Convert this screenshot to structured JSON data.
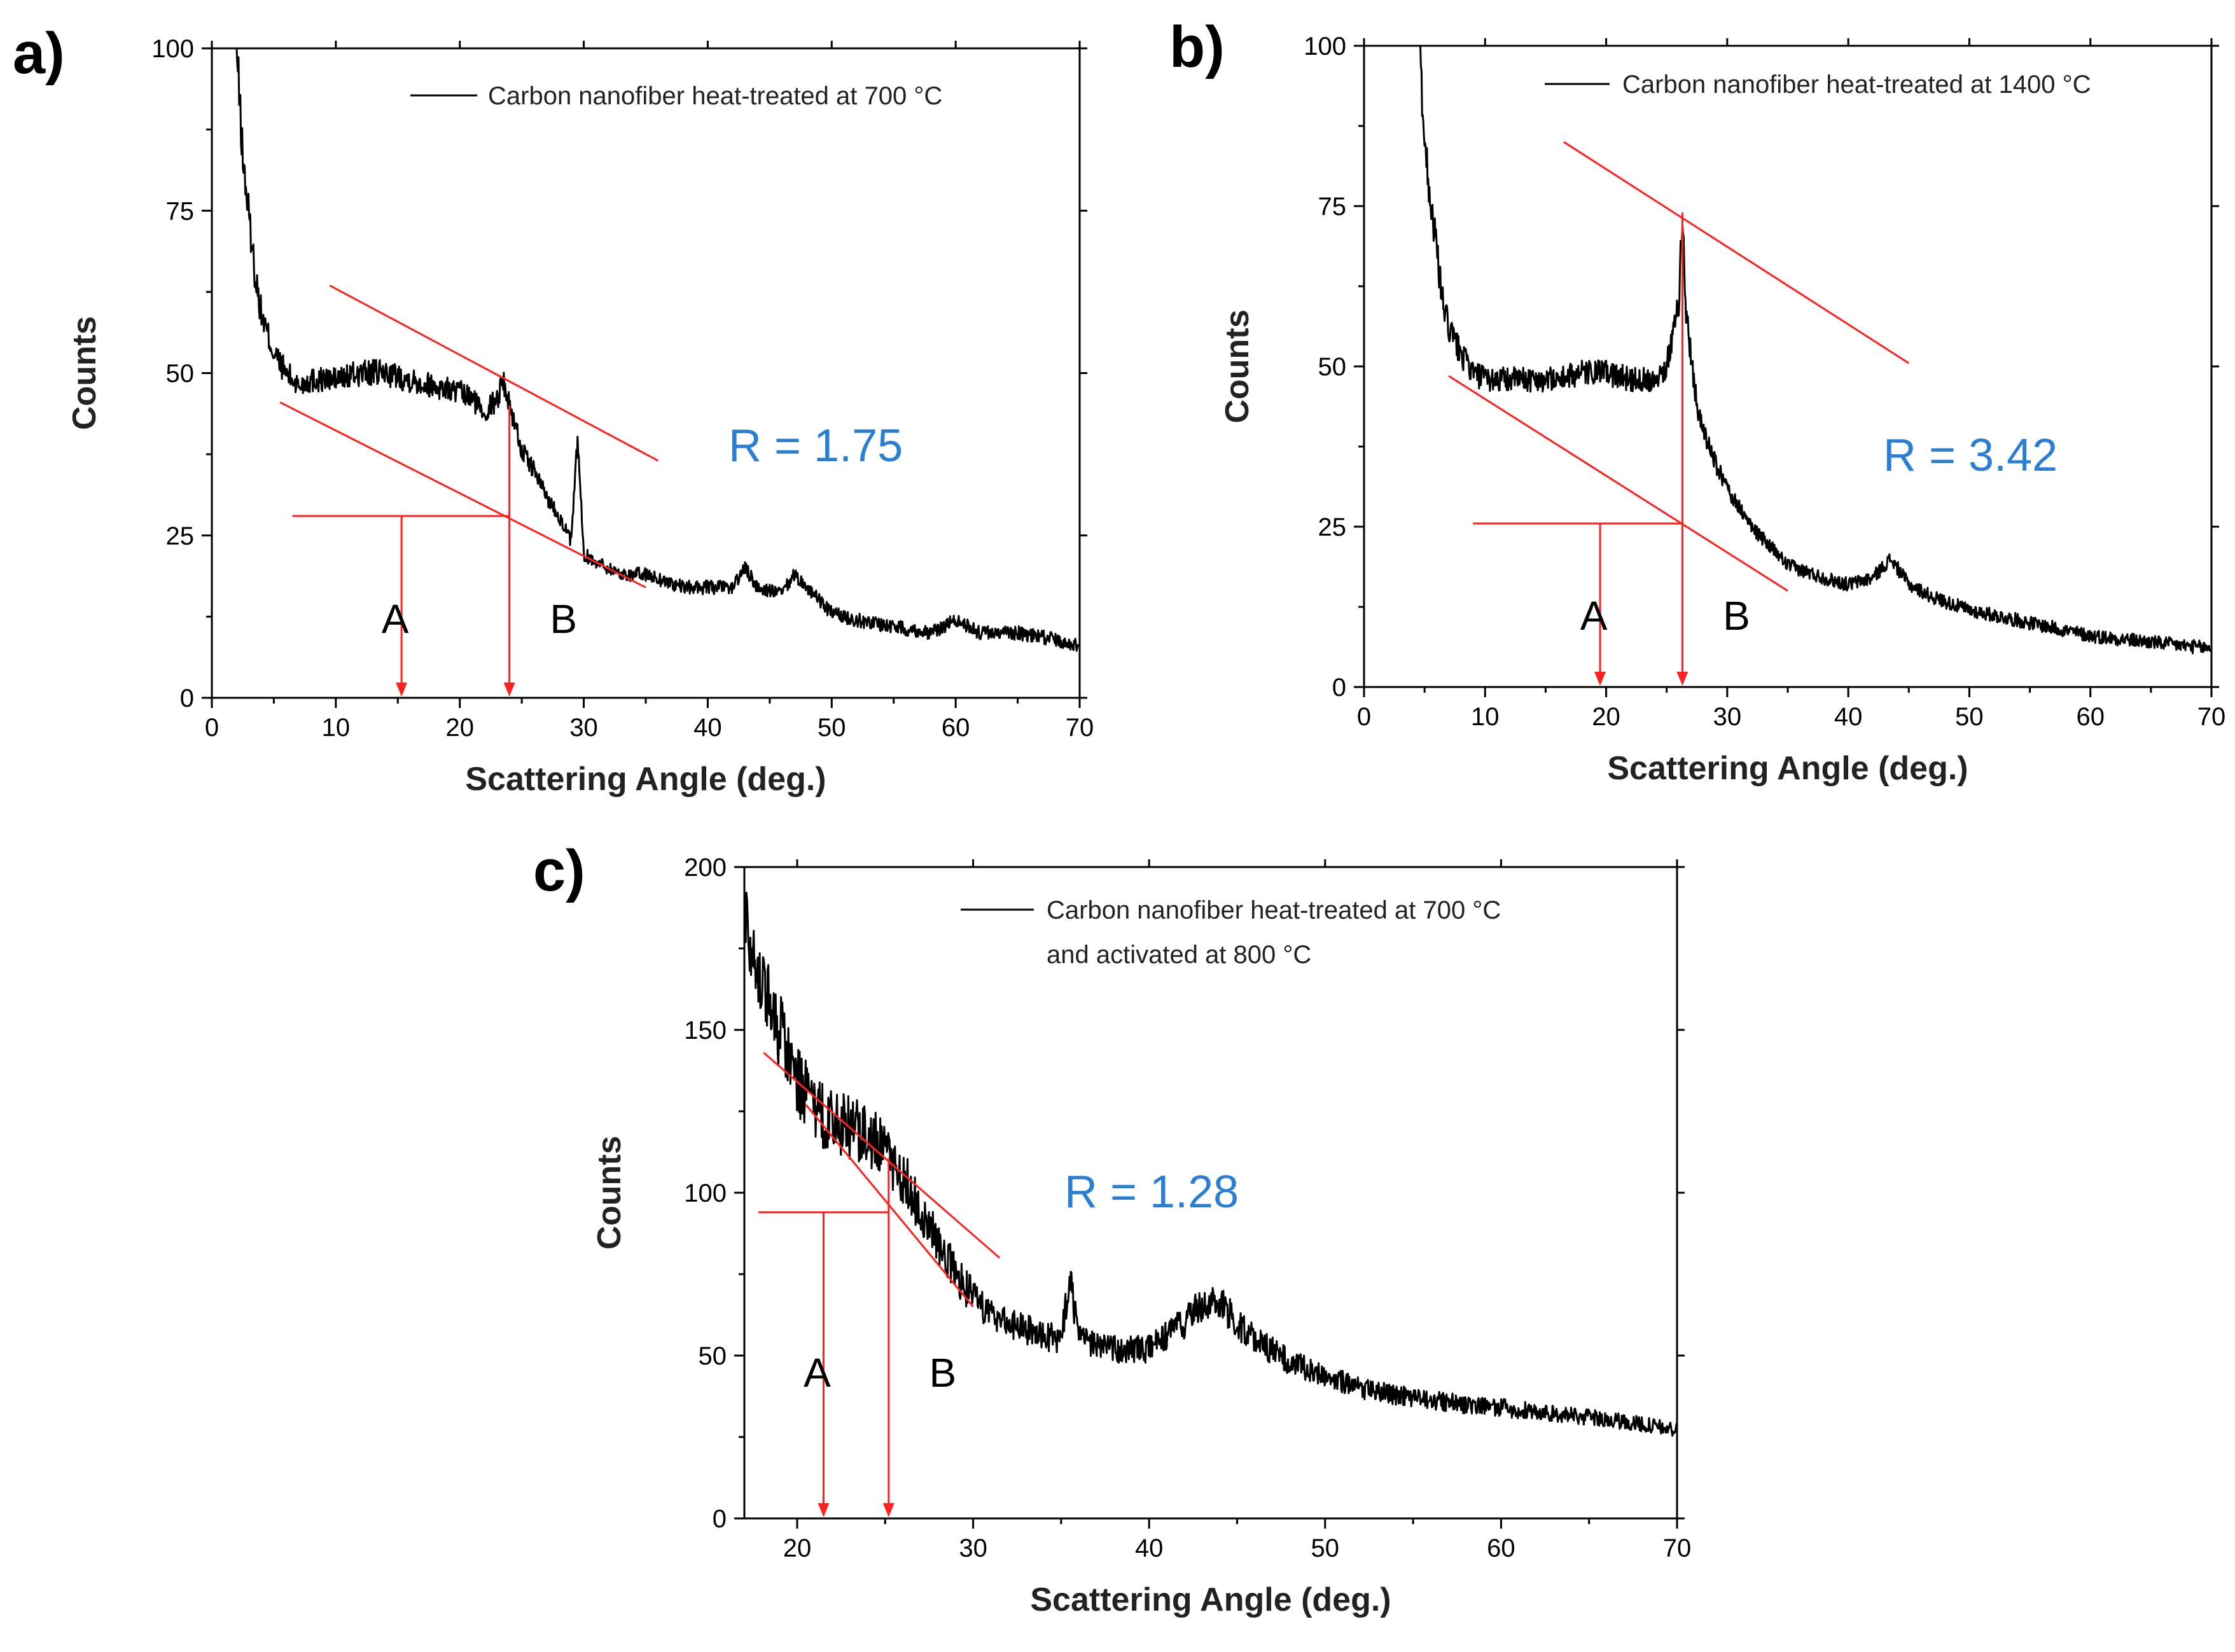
{
  "chart_data": [
    {
      "panel_label": "a)",
      "type": "line",
      "xlabel": "Scattering Angle (deg.)",
      "ylabel": "Counts",
      "xlim": [
        0,
        70
      ],
      "ylim": [
        0,
        100
      ],
      "xticks": [
        0,
        10,
        20,
        30,
        40,
        50,
        60,
        70
      ],
      "yticks": [
        0,
        25,
        50,
        75,
        100
      ],
      "legend": {
        "placement": "top-right",
        "lines": [
          "Carbon nanofiber heat-treated at 700 °C"
        ]
      },
      "series": [
        {
          "name": "Carbon nanofiber heat-treated at 700 °C",
          "color": "#000000",
          "x": [
            2,
            2.5,
            3,
            3.5,
            4,
            5,
            6,
            7,
            8,
            9,
            10,
            12,
            14,
            16,
            18,
            20,
            21,
            22,
            23,
            23.5,
            24,
            24.5,
            25,
            26,
            27,
            28,
            29,
            29.5,
            30,
            31,
            33,
            35,
            38,
            40,
            42,
            43,
            44,
            46,
            47,
            48,
            50,
            52,
            55,
            58,
            60,
            62,
            65,
            68,
            70
          ],
          "y": [
            100,
            83,
            74,
            65,
            59,
            53,
            50,
            48,
            49,
            49,
            49,
            50,
            50,
            49,
            48,
            47,
            46,
            44,
            46,
            49,
            45,
            42,
            38,
            35,
            31,
            28,
            24,
            40,
            22,
            21,
            19,
            19,
            17,
            17,
            17,
            20,
            17,
            16,
            19,
            17,
            13,
            12,
            11,
            10,
            12,
            10,
            10,
            9,
            8
          ]
        }
      ],
      "annotations": {
        "ratio": "R = 1.75",
        "marker_a": {
          "label": "A",
          "x": 15.3
        },
        "marker_b": {
          "label": "B",
          "x": 24
        },
        "baseline": {
          "x": [
            5.5,
            35
          ],
          "y": [
            45.5,
            17
          ]
        },
        "tangent": {
          "x": [
            9.5,
            36
          ],
          "y": [
            63.5,
            36.5
          ]
        },
        "level": {
          "x": [
            6.5,
            24
          ],
          "y": 28
        },
        "line_color": "#ff2020"
      }
    },
    {
      "panel_label": "b)",
      "type": "line",
      "xlabel": "Scattering Angle (deg.)",
      "ylabel": "Counts",
      "xlim": [
        0,
        70
      ],
      "ylim": [
        0,
        100
      ],
      "xticks": [
        0,
        10,
        20,
        30,
        40,
        50,
        60,
        70
      ],
      "yticks": [
        0,
        25,
        50,
        75,
        100
      ],
      "legend": {
        "placement": "top-right",
        "lines": [
          "Carbon nanofiber heat-treated at 1400 °C"
        ]
      },
      "series": [
        {
          "name": "Carbon nanofiber heat-treated at 1400 °C",
          "color": "#000000",
          "x": [
            4.6,
            5,
            5.5,
            6,
            6.5,
            7,
            8,
            9,
            10,
            12,
            14,
            16,
            18,
            20,
            22,
            24,
            25,
            25.5,
            26,
            26.3,
            26.6,
            27,
            27.5,
            28,
            29,
            30,
            32,
            35,
            38,
            40,
            42,
            43.5,
            45,
            47,
            50,
            55,
            60,
            65,
            70
          ],
          "y": [
            100,
            85,
            76,
            68,
            60,
            56,
            52,
            49,
            48,
            48,
            48,
            48,
            49,
            49,
            48,
            48,
            50,
            55,
            60,
            74,
            58,
            52,
            44,
            40,
            35,
            31,
            25,
            19,
            17,
            16,
            17,
            20,
            16,
            14,
            12,
            10,
            8,
            7,
            6
          ]
        }
      ],
      "annotations": {
        "ratio": "R = 3.42",
        "marker_a": {
          "label": "A",
          "x": 19.5
        },
        "marker_b": {
          "label": "B",
          "x": 26.3
        },
        "baseline": {
          "x": [
            7,
            35
          ],
          "y": [
            48.5,
            15
          ]
        },
        "tangent": {
          "x": [
            16.5,
            45
          ],
          "y": [
            85,
            50.5
          ]
        },
        "level": {
          "x": [
            9,
            26.3
          ],
          "y": 25.5
        },
        "line_color": "#ff2020"
      }
    },
    {
      "panel_label": "c)",
      "type": "line",
      "xlabel": "Scattering Angle (deg.)",
      "ylabel": "Counts",
      "xlim": [
        17,
        70
      ],
      "ylim": [
        0,
        200
      ],
      "xticks": [
        20,
        30,
        40,
        50,
        60,
        70
      ],
      "yticks": [
        0,
        50,
        100,
        150,
        200
      ],
      "legend": {
        "placement": "top-right",
        "lines": [
          "Carbon nanofiber heat-treated at 700 °C",
          "and activated at 800 °C"
        ]
      },
      "series": [
        {
          "name": "Carbon nanofiber heat-treated at 700 °C and activated at 800 °C",
          "color": "#000000",
          "x": [
            17,
            17.5,
            18,
            19,
            20,
            21,
            22,
            23,
            24,
            25,
            26,
            27,
            28,
            29,
            30,
            31,
            32,
            33,
            34,
            35,
            35.5,
            36,
            38,
            40,
            42,
            43,
            44,
            45,
            46,
            48,
            50,
            52,
            55,
            58,
            60,
            63,
            65,
            68,
            70
          ],
          "y": [
            188,
            175,
            165,
            150,
            135,
            125,
            122,
            120,
            118,
            112,
            105,
            95,
            85,
            75,
            68,
            63,
            60,
            58,
            56,
            55,
            73,
            55,
            52,
            52,
            60,
            66,
            66,
            60,
            55,
            48,
            44,
            40,
            37,
            35,
            34,
            32,
            31,
            29,
            27
          ]
        }
      ],
      "annotations": {
        "ratio": "R = 1.28",
        "marker_a": {
          "label": "A",
          "x": 21.5
        },
        "marker_b": {
          "label": "B",
          "x": 25.2
        },
        "baseline": {
          "x": [
            20.5,
            30
          ],
          "y": [
            127,
            65
          ]
        },
        "tangent": {
          "x": [
            18.1,
            31.5
          ],
          "y": [
            143,
            80
          ]
        },
        "level": {
          "x": [
            17.8,
            25.2
          ],
          "y": 94
        },
        "line_color": "#ff2020"
      }
    }
  ]
}
